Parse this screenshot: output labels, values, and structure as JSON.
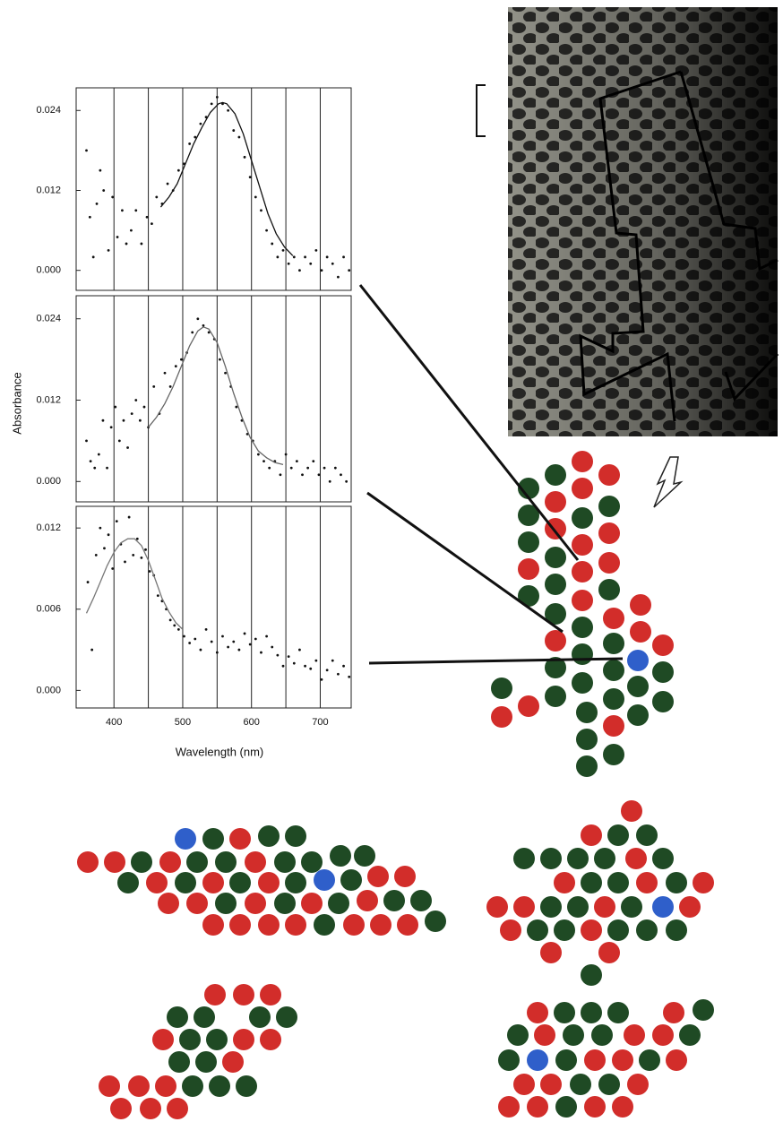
{
  "chart_data": [
    {
      "type": "scatter",
      "xlim": [
        345,
        745
      ],
      "ylim": [
        -0.003,
        0.0274
      ],
      "xticks": [
        {
          "value": 400,
          "label": null
        },
        {
          "value": 450,
          "label": null
        },
        {
          "value": 500,
          "label": null
        },
        {
          "value": 550,
          "label": null
        },
        {
          "value": 600,
          "label": null
        },
        {
          "value": 650,
          "label": null
        },
        {
          "value": 700,
          "label": null
        }
      ],
      "yticks": [
        {
          "value": 0,
          "label": "0.000"
        },
        0.012,
        0.024
      ],
      "grid": true,
      "series": [
        {
          "mode": "points",
          "color": "#111111",
          "x": [
            360,
            365,
            370,
            375,
            380,
            385,
            392,
            398,
            405,
            412,
            418,
            425,
            432,
            440,
            448,
            455,
            462,
            470,
            478,
            486,
            494,
            502,
            510,
            518,
            526,
            534,
            542,
            550,
            558,
            566,
            574,
            582,
            590,
            598,
            606,
            614,
            622,
            630,
            638,
            646,
            654,
            662,
            670,
            678,
            686,
            694,
            702,
            710,
            718,
            726,
            734,
            742
          ],
          "values": [
            0.018,
            0.008,
            0.002,
            0.01,
            0.015,
            0.012,
            0.003,
            0.011,
            0.005,
            0.009,
            0.004,
            0.006,
            0.009,
            0.004,
            0.008,
            0.007,
            0.011,
            0.01,
            0.013,
            0.012,
            0.015,
            0.016,
            0.019,
            0.02,
            0.022,
            0.023,
            0.025,
            0.026,
            0.025,
            0.024,
            0.021,
            0.02,
            0.017,
            0.014,
            0.011,
            0.009,
            0.006,
            0.004,
            0.002,
            0.003,
            0.001,
            0.002,
            0.0,
            0.002,
            0.001,
            0.003,
            0.0,
            0.002,
            0.001,
            -0.001,
            0.002,
            0.0
          ]
        },
        {
          "mode": "line",
          "color": "#111111",
          "x": [
            468,
            480,
            492,
            504,
            516,
            528,
            540,
            552,
            558,
            564,
            576,
            588,
            600,
            612,
            624,
            636,
            648,
            660
          ],
          "values": [
            0.0095,
            0.011,
            0.013,
            0.016,
            0.019,
            0.0215,
            0.0237,
            0.025,
            0.0252,
            0.025,
            0.0235,
            0.0205,
            0.0165,
            0.0125,
            0.0085,
            0.0055,
            0.0035,
            0.0022
          ]
        }
      ]
    },
    {
      "type": "scatter",
      "xlim": [
        345,
        745
      ],
      "ylim": [
        -0.003,
        0.0274
      ],
      "ylabel": "Absorbance",
      "xticks": [
        {
          "value": 400,
          "label": null
        },
        {
          "value": 450,
          "label": null
        },
        {
          "value": 500,
          "label": null
        },
        {
          "value": 550,
          "label": null
        },
        {
          "value": 600,
          "label": null
        },
        {
          "value": 650,
          "label": null
        },
        {
          "value": 700,
          "label": null
        }
      ],
      "yticks": [
        {
          "value": 0,
          "label": "0.000"
        },
        0.012,
        0.024
      ],
      "grid": true,
      "series": [
        {
          "mode": "points",
          "color": "#111111",
          "x": [
            360,
            366,
            372,
            378,
            384,
            390,
            396,
            402,
            408,
            414,
            420,
            426,
            432,
            438,
            444,
            450,
            458,
            466,
            474,
            482,
            490,
            498,
            506,
            514,
            522,
            530,
            538,
            546,
            554,
            562,
            570,
            578,
            586,
            594,
            602,
            610,
            618,
            626,
            634,
            642,
            650,
            658,
            666,
            674,
            682,
            690,
            698,
            706,
            714,
            722,
            730,
            738
          ],
          "values": [
            0.006,
            0.003,
            0.002,
            0.004,
            0.009,
            0.002,
            0.008,
            0.011,
            0.006,
            0.009,
            0.005,
            0.01,
            0.012,
            0.009,
            0.011,
            0.008,
            0.014,
            0.01,
            0.016,
            0.014,
            0.017,
            0.018,
            0.019,
            0.022,
            0.024,
            0.023,
            0.022,
            0.021,
            0.018,
            0.016,
            0.014,
            0.011,
            0.009,
            0.007,
            0.006,
            0.004,
            0.003,
            0.002,
            0.003,
            0.001,
            0.004,
            0.002,
            0.003,
            0.001,
            0.002,
            0.003,
            0.001,
            0.002,
            0.0,
            0.002,
            0.001,
            0.0
          ]
        },
        {
          "mode": "line",
          "color": "#666666",
          "x": [
            450,
            462,
            474,
            486,
            498,
            510,
            522,
            530,
            538,
            550,
            562,
            574,
            586,
            598,
            610,
            622,
            634,
            646
          ],
          "values": [
            0.008,
            0.0095,
            0.0115,
            0.014,
            0.017,
            0.02,
            0.0222,
            0.0228,
            0.0225,
            0.0205,
            0.017,
            0.013,
            0.0095,
            0.0065,
            0.0045,
            0.0035,
            0.0028,
            0.0025
          ]
        }
      ]
    },
    {
      "type": "scatter",
      "xlim": [
        345,
        745
      ],
      "ylim": [
        -0.0013,
        0.0136
      ],
      "xlabel": "Wavelength (nm)",
      "xticks": [
        400,
        {
          "value": 450,
          "label": null
        },
        500,
        {
          "value": 550,
          "label": null
        },
        600,
        {
          "value": 650,
          "label": null
        },
        700
      ],
      "yticks": [
        {
          "value": 0,
          "label": "0.000"
        },
        0.006,
        0.012
      ],
      "grid": true,
      "series": [
        {
          "mode": "points",
          "color": "#111111",
          "x": [
            362,
            368,
            374,
            380,
            386,
            392,
            398,
            404,
            410,
            416,
            422,
            428,
            434,
            440,
            446,
            452,
            458,
            464,
            470,
            476,
            482,
            488,
            494,
            502,
            510,
            518,
            526,
            534,
            542,
            550,
            558,
            566,
            574,
            582,
            590,
            598,
            606,
            614,
            622,
            630,
            638,
            646,
            654,
            662,
            670,
            678,
            686,
            694,
            702,
            710,
            718,
            726,
            734,
            742
          ],
          "values": [
            0.008,
            0.003,
            0.01,
            0.012,
            0.0105,
            0.0115,
            0.009,
            0.0125,
            0.0108,
            0.0095,
            0.0128,
            0.01,
            0.0112,
            0.0098,
            0.0104,
            0.0088,
            0.0085,
            0.007,
            0.0066,
            0.006,
            0.0052,
            0.0048,
            0.0045,
            0.004,
            0.0035,
            0.0038,
            0.003,
            0.0045,
            0.0036,
            0.0028,
            0.004,
            0.0032,
            0.0036,
            0.003,
            0.0042,
            0.0034,
            0.0038,
            0.0028,
            0.004,
            0.0032,
            0.0026,
            0.0018,
            0.0025,
            0.002,
            0.003,
            0.0018,
            0.0016,
            0.0022,
            0.0008,
            0.0015,
            0.0022,
            0.0012,
            0.0018,
            0.001
          ]
        },
        {
          "mode": "line",
          "color": "#777777",
          "x": [
            360,
            370,
            380,
            390,
            400,
            410,
            420,
            430,
            440,
            450,
            460,
            470,
            480,
            490,
            500
          ],
          "values": [
            0.0057,
            0.0068,
            0.008,
            0.0092,
            0.0102,
            0.0109,
            0.0112,
            0.0112,
            0.0107,
            0.0096,
            0.0082,
            0.0068,
            0.0058,
            0.005,
            0.0045
          ]
        }
      ]
    }
  ]
}
